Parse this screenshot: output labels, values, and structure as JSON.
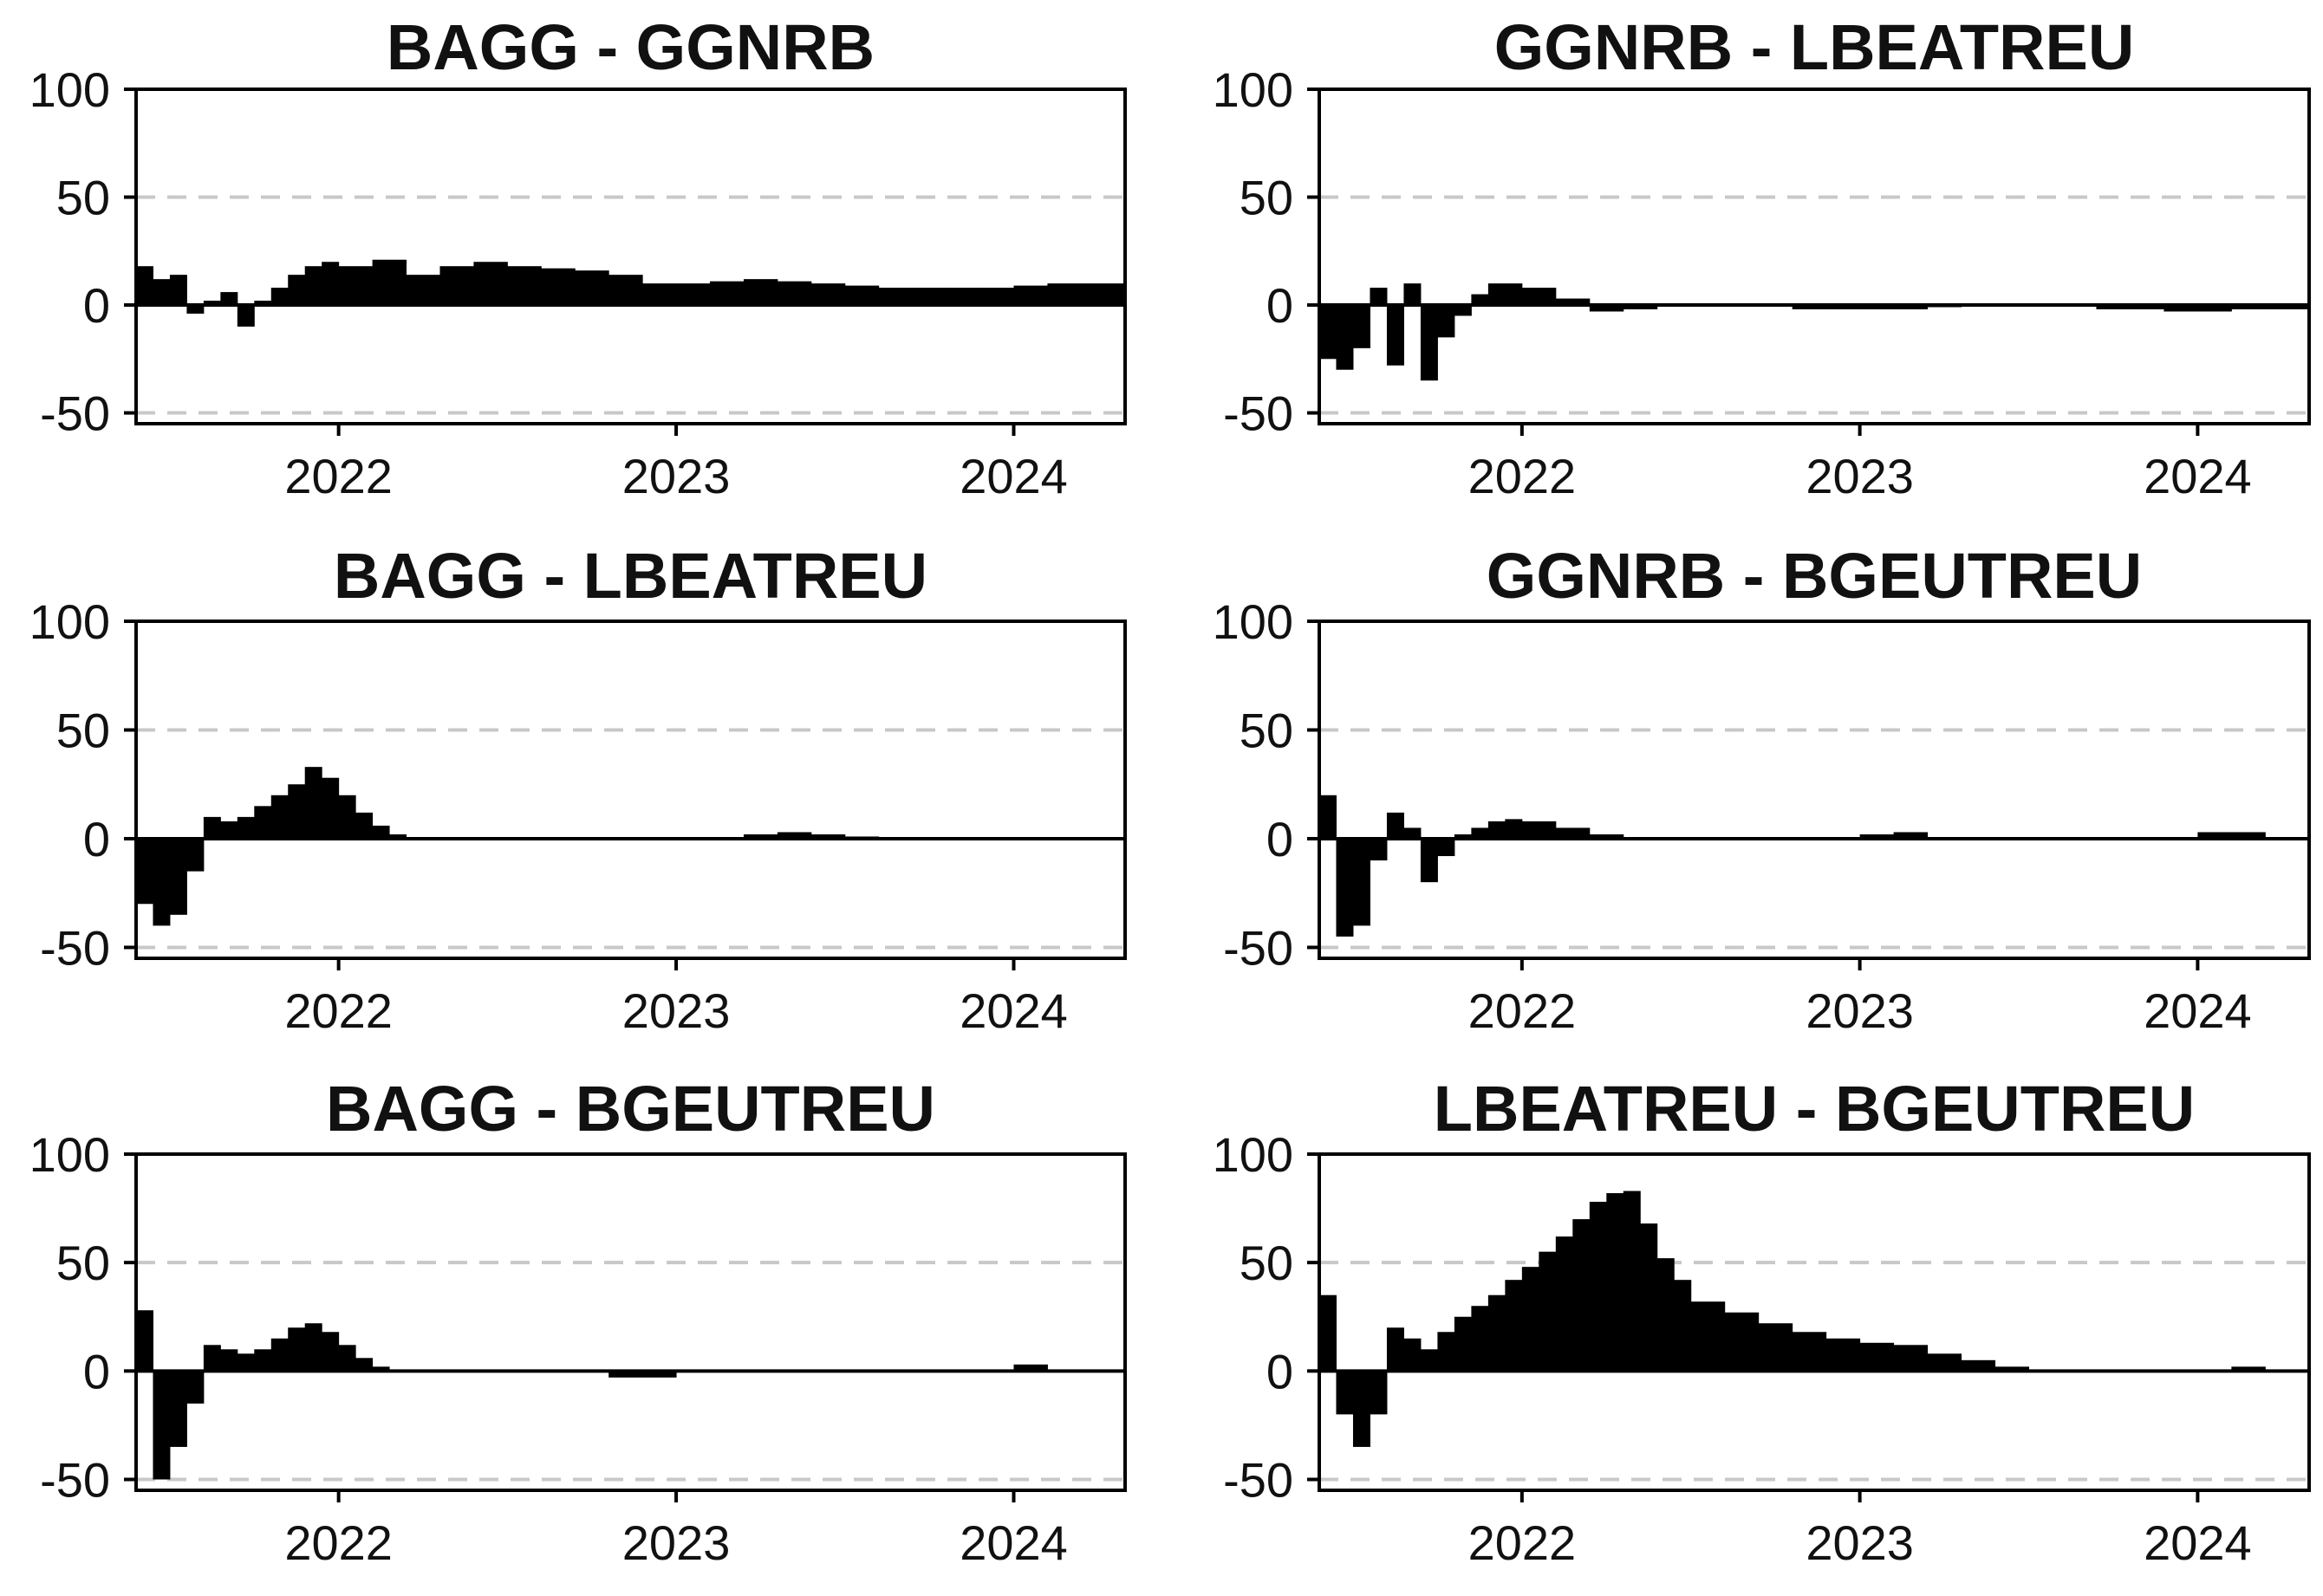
{
  "chart_data": [
    {
      "type": "bar",
      "title": "BAGG - GGNRB",
      "ylim": [
        -55,
        100
      ],
      "xlim": [
        2021.4,
        2024.33
      ],
      "yticks": [
        "100",
        "50",
        "0",
        "-50"
      ],
      "xticks": [
        "2022",
        "2023",
        "2024"
      ],
      "gridlines_y": [
        50,
        -50
      ],
      "series": [
        {
          "x": [
            2021.4,
            2021.45,
            2021.5,
            2021.55,
            2021.6,
            2021.65,
            2021.7,
            2021.75,
            2021.8,
            2021.85,
            2021.9,
            2021.95,
            2022.0,
            2022.1,
            2022.2,
            2022.3,
            2022.4,
            2022.5,
            2022.6,
            2022.7,
            2022.8,
            2022.9,
            2023.0,
            2023.1,
            2023.2,
            2023.3,
            2023.4,
            2023.5,
            2023.6,
            2023.7,
            2023.8,
            2023.9,
            2024.0,
            2024.1,
            2024.2,
            2024.33
          ],
          "values": [
            18,
            12,
            14,
            -4,
            2,
            6,
            -10,
            2,
            8,
            14,
            18,
            20,
            18,
            21,
            14,
            18,
            20,
            18,
            17,
            16,
            14,
            10,
            10,
            11,
            12,
            11,
            10,
            9,
            8,
            8,
            8,
            8,
            9,
            10,
            10,
            10
          ]
        }
      ]
    },
    {
      "type": "bar",
      "title": "GGNRB - LBEATREU",
      "ylim": [
        -55,
        100
      ],
      "xlim": [
        2021.4,
        2024.33
      ],
      "yticks": [
        "100",
        "50",
        "0",
        "-50"
      ],
      "xticks": [
        "2022",
        "2023",
        "2024"
      ],
      "gridlines_y": [
        50,
        -50
      ],
      "series": [
        {
          "x": [
            2021.4,
            2021.45,
            2021.5,
            2021.55,
            2021.6,
            2021.65,
            2021.7,
            2021.75,
            2021.8,
            2021.85,
            2021.9,
            2021.95,
            2022.0,
            2022.1,
            2022.2,
            2022.3,
            2022.4,
            2022.5,
            2022.6,
            2022.7,
            2022.8,
            2022.9,
            2023.0,
            2023.1,
            2023.2,
            2023.3,
            2023.4,
            2023.5,
            2023.6,
            2023.7,
            2023.8,
            2023.9,
            2024.0,
            2024.1,
            2024.2,
            2024.33
          ],
          "values": [
            -25,
            -30,
            -20,
            8,
            -28,
            10,
            -35,
            -15,
            -5,
            5,
            10,
            10,
            8,
            3,
            -3,
            -2,
            0,
            0,
            0,
            0,
            -2,
            -2,
            -2,
            -2,
            -1,
            0,
            0,
            0,
            0,
            -2,
            -2,
            -3,
            -3,
            -2,
            -2,
            -2
          ]
        }
      ]
    },
    {
      "type": "bar",
      "title": "BAGG - LBEATREU",
      "ylim": [
        -55,
        100
      ],
      "xlim": [
        2021.4,
        2024.33
      ],
      "yticks": [
        "100",
        "50",
        "0",
        "-50"
      ],
      "xticks": [
        "2022",
        "2023",
        "2024"
      ],
      "gridlines_y": [
        50,
        -50
      ],
      "series": [
        {
          "x": [
            2021.4,
            2021.45,
            2021.5,
            2021.55,
            2021.6,
            2021.65,
            2021.7,
            2021.75,
            2021.8,
            2021.85,
            2021.9,
            2021.95,
            2022.0,
            2022.05,
            2022.1,
            2022.15,
            2022.2,
            2022.3,
            2022.4,
            2022.5,
            2022.6,
            2022.7,
            2022.8,
            2022.9,
            2023.0,
            2023.1,
            2023.2,
            2023.3,
            2023.4,
            2023.5,
            2023.6,
            2023.7,
            2023.8,
            2023.9,
            2024.0,
            2024.1,
            2024.2,
            2024.33
          ],
          "values": [
            -30,
            -40,
            -35,
            -15,
            10,
            8,
            10,
            15,
            20,
            25,
            33,
            28,
            20,
            12,
            6,
            2,
            0,
            0,
            0,
            0,
            0,
            0,
            0,
            0,
            0,
            0,
            2,
            3,
            2,
            1,
            0,
            0,
            0,
            0,
            0,
            0,
            0,
            0
          ]
        }
      ]
    },
    {
      "type": "bar",
      "title": "GGNRB - BGEUTREU",
      "ylim": [
        -55,
        100
      ],
      "xlim": [
        2021.4,
        2024.33
      ],
      "yticks": [
        "100",
        "50",
        "0",
        "-50"
      ],
      "xticks": [
        "2022",
        "2023",
        "2024"
      ],
      "gridlines_y": [
        50,
        -50
      ],
      "series": [
        {
          "x": [
            2021.4,
            2021.45,
            2021.5,
            2021.55,
            2021.6,
            2021.65,
            2021.7,
            2021.75,
            2021.8,
            2021.85,
            2021.9,
            2021.95,
            2022.0,
            2022.1,
            2022.2,
            2022.3,
            2022.4,
            2022.5,
            2022.6,
            2022.7,
            2022.8,
            2022.9,
            2023.0,
            2023.1,
            2023.2,
            2023.3,
            2023.4,
            2023.5,
            2023.6,
            2023.7,
            2023.8,
            2023.9,
            2024.0,
            2024.1,
            2024.2,
            2024.33
          ],
          "values": [
            20,
            -45,
            -40,
            -10,
            12,
            5,
            -20,
            -8,
            2,
            5,
            8,
            9,
            8,
            5,
            2,
            0,
            0,
            0,
            0,
            0,
            0,
            0,
            2,
            3,
            0,
            0,
            0,
            0,
            0,
            0,
            0,
            0,
            3,
            3,
            0,
            0
          ]
        }
      ]
    },
    {
      "type": "bar",
      "title": "BAGG - BGEUTREU",
      "ylim": [
        -55,
        100
      ],
      "xlim": [
        2021.4,
        2024.33
      ],
      "yticks": [
        "100",
        "50",
        "0",
        "-50"
      ],
      "xticks": [
        "2022",
        "2023",
        "2024"
      ],
      "gridlines_y": [
        50,
        -50
      ],
      "series": [
        {
          "x": [
            2021.4,
            2021.45,
            2021.5,
            2021.55,
            2021.6,
            2021.65,
            2021.7,
            2021.75,
            2021.8,
            2021.85,
            2021.9,
            2021.95,
            2022.0,
            2022.05,
            2022.1,
            2022.15,
            2022.2,
            2022.3,
            2022.4,
            2022.5,
            2022.6,
            2022.7,
            2022.8,
            2022.9,
            2023.0,
            2023.1,
            2023.2,
            2023.3,
            2023.4,
            2023.5,
            2023.6,
            2023.7,
            2023.8,
            2023.9,
            2024.0,
            2024.1,
            2024.2,
            2024.33
          ],
          "values": [
            28,
            -50,
            -35,
            -15,
            12,
            10,
            8,
            10,
            15,
            20,
            22,
            18,
            12,
            6,
            2,
            0,
            0,
            0,
            0,
            0,
            0,
            0,
            -3,
            -3,
            0,
            0,
            0,
            0,
            0,
            0,
            0,
            0,
            0,
            0,
            3,
            0,
            0,
            0
          ]
        }
      ]
    },
    {
      "type": "bar",
      "title": "LBEATREU - BGEUTREU",
      "ylim": [
        -55,
        100
      ],
      "xlim": [
        2021.4,
        2024.33
      ],
      "yticks": [
        "100",
        "50",
        "0",
        "-50"
      ],
      "xticks": [
        "2022",
        "2023",
        "2024"
      ],
      "gridlines_y": [
        50,
        -50
      ],
      "series": [
        {
          "x": [
            2021.4,
            2021.45,
            2021.5,
            2021.55,
            2021.6,
            2021.65,
            2021.7,
            2021.75,
            2021.8,
            2021.85,
            2021.9,
            2021.95,
            2022.0,
            2022.05,
            2022.1,
            2022.15,
            2022.2,
            2022.25,
            2022.3,
            2022.35,
            2022.4,
            2022.45,
            2022.5,
            2022.6,
            2022.7,
            2022.8,
            2022.9,
            2023.0,
            2023.1,
            2023.2,
            2023.3,
            2023.4,
            2023.5,
            2023.6,
            2023.7,
            2023.8,
            2023.9,
            2024.0,
            2024.1,
            2024.2,
            2024.33
          ],
          "values": [
            35,
            -20,
            -35,
            -20,
            20,
            15,
            10,
            18,
            25,
            30,
            35,
            42,
            48,
            55,
            62,
            70,
            78,
            82,
            83,
            68,
            52,
            42,
            32,
            27,
            22,
            18,
            15,
            13,
            12,
            8,
            5,
            2,
            0,
            0,
            0,
            0,
            0,
            0,
            2,
            0,
            0
          ]
        }
      ]
    }
  ]
}
